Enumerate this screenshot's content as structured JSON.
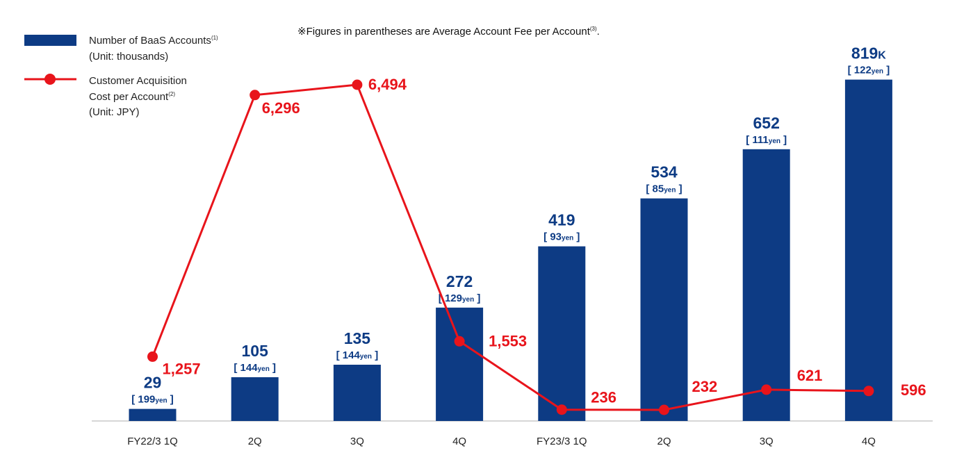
{
  "note": {
    "text": "※Figures in parentheses are Average Account Fee per Account",
    "sup": "(3)",
    "end": "."
  },
  "legend": {
    "bar": {
      "line1": "Number of BaaS Accounts",
      "sup": "(1)",
      "line2": "(Unit: thousands)"
    },
    "line": {
      "line1": "Customer Acquisition",
      "line2": "Cost per Account",
      "sup": "(2)",
      "line3": "(Unit: JPY)"
    }
  },
  "colors": {
    "bar": "#0D3B84",
    "line": "#E8141B",
    "axis": "#C8C8C8"
  },
  "chart_data": {
    "type": "bar",
    "categories": [
      "FY22/3 1Q",
      "2Q",
      "3Q",
      "4Q",
      "FY23/3 1Q",
      "2Q",
      "3Q",
      "4Q"
    ],
    "series": [
      {
        "name": "Number of BaaS Accounts",
        "type": "bar",
        "values": [
          29,
          105,
          135,
          272,
          419,
          534,
          652,
          819
        ]
      },
      {
        "name": "Customer Acquisition Cost per Account",
        "type": "line",
        "values": [
          1257,
          6296,
          6494,
          1553,
          236,
          232,
          621,
          596
        ]
      }
    ],
    "bar_labels": [
      "29",
      "105",
      "135",
      "272",
      "419",
      "534",
      "652",
      "819"
    ],
    "bar_last_unit": "K",
    "fee_labels": [
      "199",
      "144",
      "144",
      "129",
      "93",
      "85",
      "111",
      "122"
    ],
    "fee_unit": "yen",
    "line_labels": [
      "1,257",
      "6,296",
      "6,494",
      "1,553",
      "236",
      "232",
      "621",
      "596"
    ],
    "ylim_bars": [
      0,
      900
    ],
    "legend_position": "top-left",
    "grid": false
  }
}
